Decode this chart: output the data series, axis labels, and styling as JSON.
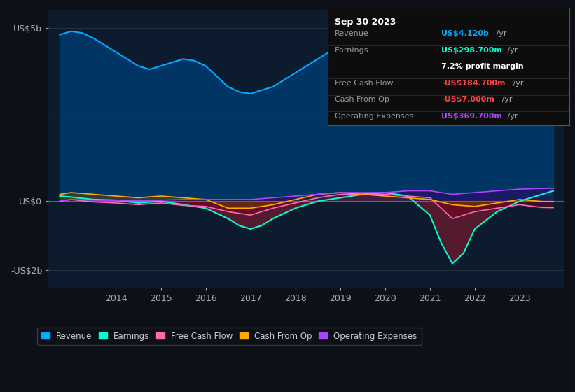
{
  "background_color": "#0d1117",
  "plot_bg_color": "#0d1b2e",
  "title": "Sep 30 2023",
  "ylim": [
    -2500000000.0,
    5500000000.0
  ],
  "xlim": [
    2012.5,
    2024.0
  ],
  "yticks": [
    -2000000000.0,
    0,
    5000000000.0
  ],
  "ytick_labels": [
    "-US$2b",
    "US$0",
    "US$5b"
  ],
  "xticks": [
    2014,
    2015,
    2016,
    2017,
    2018,
    2019,
    2020,
    2021,
    2022,
    2023
  ],
  "legend": [
    {
      "label": "Revenue",
      "color": "#00aaff"
    },
    {
      "label": "Earnings",
      "color": "#00ffcc"
    },
    {
      "label": "Free Cash Flow",
      "color": "#ff69b4"
    },
    {
      "label": "Cash From Op",
      "color": "#ffaa00"
    },
    {
      "label": "Operating Expenses",
      "color": "#aa44ff"
    }
  ],
  "info_box": {
    "date": "Sep 30 2023",
    "rows": [
      {
        "label": "Revenue",
        "value": "US$4.120b /yr",
        "value_color": "#00aaff"
      },
      {
        "label": "Earnings",
        "value": "US$298.700m /yr",
        "value_color": "#00ffcc"
      },
      {
        "label": "",
        "value": "7.2% profit margin",
        "value_color": "#ffffff"
      },
      {
        "label": "Free Cash Flow",
        "value": "-US$184.700m /yr",
        "value_color": "#ff4444"
      },
      {
        "label": "Cash From Op",
        "value": "-US$7.000m /yr",
        "value_color": "#ff4444"
      },
      {
        "label": "Operating Expenses",
        "value": "US$369.700m /yr",
        "value_color": "#aa44ff"
      }
    ]
  },
  "revenue": {
    "x": [
      2012.75,
      2013.0,
      2013.25,
      2013.5,
      2013.75,
      2014.0,
      2014.25,
      2014.5,
      2014.75,
      2015.0,
      2015.25,
      2015.5,
      2015.75,
      2016.0,
      2016.25,
      2016.5,
      2016.75,
      2017.0,
      2017.25,
      2017.5,
      2017.75,
      2018.0,
      2018.25,
      2018.5,
      2018.75,
      2019.0,
      2019.25,
      2019.5,
      2019.75,
      2020.0,
      2020.25,
      2020.5,
      2020.75,
      2021.0,
      2021.25,
      2021.5,
      2021.75,
      2022.0,
      2022.25,
      2022.5,
      2022.75,
      2023.0,
      2023.25,
      2023.5,
      2023.75
    ],
    "y": [
      4800000000.0,
      4900000000.0,
      4850000000.0,
      4700000000.0,
      4500000000.0,
      4300000000.0,
      4100000000.0,
      3900000000.0,
      3800000000.0,
      3900000000.0,
      4000000000.0,
      4100000000.0,
      4050000000.0,
      3900000000.0,
      3600000000.0,
      3300000000.0,
      3150000000.0,
      3100000000.0,
      3200000000.0,
      3300000000.0,
      3500000000.0,
      3700000000.0,
      3900000000.0,
      4100000000.0,
      4300000000.0,
      4400000000.0,
      4450000000.0,
      4500000000.0,
      4500000000.0,
      4500000000.0,
      4400000000.0,
      4200000000.0,
      3800000000.0,
      3400000000.0,
      3000000000.0,
      2800000000.0,
      2900000000.0,
      3100000000.0,
      3400000000.0,
      3700000000.0,
      4000000000.0,
      4100000000.0,
      4200000000.0,
      4120000000.0,
      4120000000.0
    ]
  },
  "earnings": {
    "x": [
      2012.75,
      2013.0,
      2013.5,
      2014.0,
      2014.5,
      2015.0,
      2015.5,
      2016.0,
      2016.5,
      2016.75,
      2017.0,
      2017.25,
      2017.5,
      2018.0,
      2018.5,
      2019.0,
      2019.5,
      2020.0,
      2020.5,
      2021.0,
      2021.25,
      2021.5,
      2021.75,
      2022.0,
      2022.5,
      2023.0,
      2023.5,
      2023.75
    ],
    "y": [
      150000000.0,
      120000000.0,
      50000000.0,
      30000000.0,
      -50000000.0,
      0,
      -100000000.0,
      -200000000.0,
      -500000000.0,
      -700000000.0,
      -800000000.0,
      -700000000.0,
      -500000000.0,
      -200000000.0,
      0,
      100000000.0,
      200000000.0,
      250000000.0,
      150000000.0,
      -400000000.0,
      -1200000000.0,
      -1800000000.0,
      -1500000000.0,
      -800000000.0,
      -300000000.0,
      0,
      200000000.0,
      299000000.0
    ]
  },
  "free_cash_flow": {
    "x": [
      2012.75,
      2013.0,
      2013.5,
      2014.0,
      2014.5,
      2015.0,
      2015.5,
      2016.0,
      2016.5,
      2017.0,
      2017.5,
      2018.0,
      2018.5,
      2019.0,
      2019.5,
      2020.0,
      2020.5,
      2021.0,
      2021.25,
      2021.5,
      2021.75,
      2022.0,
      2022.5,
      2023.0,
      2023.5,
      2023.75
    ],
    "y": [
      0,
      50000000.0,
      -20000000.0,
      -50000000.0,
      -100000000.0,
      -50000000.0,
      -120000000.0,
      -150000000.0,
      -300000000.0,
      -400000000.0,
      -200000000.0,
      -50000000.0,
      100000000.0,
      200000000.0,
      200000000.0,
      200000000.0,
      150000000.0,
      100000000.0,
      -200000000.0,
      -500000000.0,
      -400000000.0,
      -300000000.0,
      -200000000.0,
      -100000000.0,
      -180000000.0,
      -185000000.0
    ]
  },
  "cash_from_op": {
    "x": [
      2012.75,
      2013.0,
      2013.5,
      2014.0,
      2014.5,
      2015.0,
      2015.5,
      2016.0,
      2016.5,
      2017.0,
      2017.5,
      2018.0,
      2018.5,
      2019.0,
      2019.5,
      2020.0,
      2020.5,
      2021.0,
      2021.5,
      2022.0,
      2022.5,
      2023.0,
      2023.5,
      2023.75
    ],
    "y": [
      200000000.0,
      250000000.0,
      200000000.0,
      150000000.0,
      100000000.0,
      150000000.0,
      100000000.0,
      50000000.0,
      -200000000.0,
      -200000000.0,
      -100000000.0,
      50000000.0,
      200000000.0,
      250000000.0,
      200000000.0,
      150000000.0,
      100000000.0,
      50000000.0,
      -100000000.0,
      -150000000.0,
      -50000000.0,
      50000000.0,
      -7000000.0,
      -7000000.0
    ]
  },
  "operating_expenses": {
    "x": [
      2012.75,
      2013.0,
      2013.5,
      2014.0,
      2014.5,
      2015.0,
      2015.5,
      2016.0,
      2016.5,
      2017.0,
      2017.5,
      2018.0,
      2018.5,
      2019.0,
      2019.5,
      2020.0,
      2020.5,
      2021.0,
      2021.5,
      2022.0,
      2022.5,
      2023.0,
      2023.5,
      2023.75
    ],
    "y": [
      0,
      50000000.0,
      30000000.0,
      20000000.0,
      10000000.0,
      30000000.0,
      50000000.0,
      50000000.0,
      50000000.0,
      50000000.0,
      100000000.0,
      150000000.0,
      200000000.0,
      250000000.0,
      250000000.0,
      250000000.0,
      300000000.0,
      300000000.0,
      200000000.0,
      250000000.0,
      300000000.0,
      350000000.0,
      370000000.0,
      369700000.0
    ]
  }
}
